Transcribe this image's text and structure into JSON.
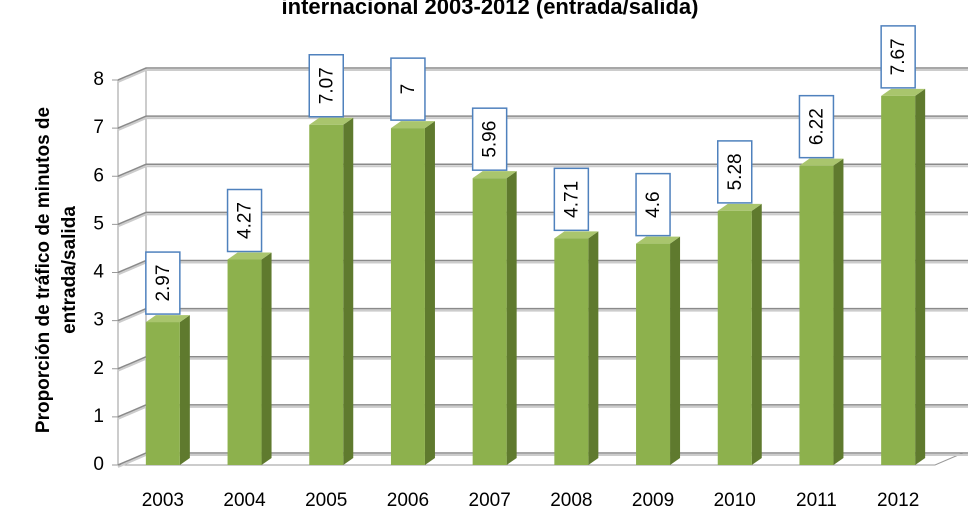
{
  "chart_data": {
    "type": "bar",
    "title": "internacional 2003-2012 (entrada/salida)",
    "y_label": [
      "Proporción de tráfico de minutos de",
      "entrada/salida"
    ],
    "categories": [
      "2003",
      "2004",
      "2005",
      "2006",
      "2007",
      "2008",
      "2009",
      "2010",
      "2011",
      "2012"
    ],
    "values": [
      2.97,
      4.27,
      7.07,
      7,
      5.96,
      4.71,
      4.6,
      5.28,
      6.22,
      7.67
    ],
    "color": "#8db14d",
    "ylim": [
      0,
      8
    ],
    "yticks": [
      0,
      1,
      2,
      3,
      4,
      5,
      6,
      7,
      8
    ],
    "grid": true
  }
}
